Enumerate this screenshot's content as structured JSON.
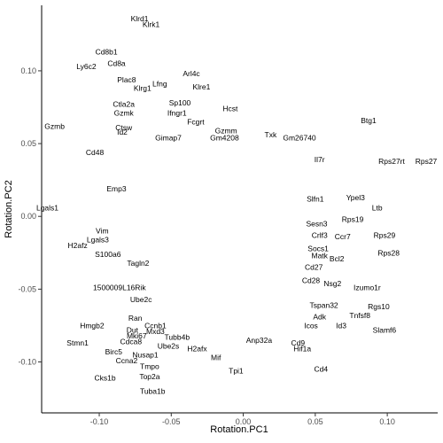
{
  "chart_data": {
    "type": "scatter",
    "xlabel": "Rotation.PC1",
    "ylabel": "Rotation.PC2",
    "xlim": [
      -0.14,
      0.135
    ],
    "ylim": [
      -0.135,
      0.145
    ],
    "xticks": [
      -0.1,
      -0.05,
      0.0,
      0.05,
      0.1
    ],
    "xtick_labels": [
      "-0.10",
      "-0.05",
      "0.00",
      "0.05",
      "0.10"
    ],
    "yticks": [
      -0.1,
      -0.05,
      0.0,
      0.05,
      0.1
    ],
    "ytick_labels": [
      "-0.10",
      "-0.05",
      "0.00",
      "0.05",
      "0.10"
    ],
    "grid": false,
    "points": [
      {
        "label": "Klrd1",
        "x": -0.072,
        "y": 0.136
      },
      {
        "label": "Klrk1",
        "x": -0.064,
        "y": 0.132
      },
      {
        "label": "Cd8b1",
        "x": -0.095,
        "y": 0.113
      },
      {
        "label": "Cd8a",
        "x": -0.088,
        "y": 0.105
      },
      {
        "label": "Ly6c2",
        "x": -0.109,
        "y": 0.103
      },
      {
        "label": "Arl4c",
        "x": -0.036,
        "y": 0.098
      },
      {
        "label": "Plac8",
        "x": -0.081,
        "y": 0.094
      },
      {
        "label": "Lfng",
        "x": -0.058,
        "y": 0.091
      },
      {
        "label": "Klrg1",
        "x": -0.07,
        "y": 0.088
      },
      {
        "label": "Klre1",
        "x": -0.029,
        "y": 0.089
      },
      {
        "label": "Sp100",
        "x": -0.044,
        "y": 0.078
      },
      {
        "label": "Ctla2a",
        "x": -0.083,
        "y": 0.077
      },
      {
        "label": "Hcst",
        "x": -0.009,
        "y": 0.074
      },
      {
        "label": "Gzmk",
        "x": -0.083,
        "y": 0.071
      },
      {
        "label": "Ifngr1",
        "x": -0.046,
        "y": 0.071
      },
      {
        "label": "Btg1",
        "x": 0.087,
        "y": 0.066
      },
      {
        "label": "Fcgrt",
        "x": -0.033,
        "y": 0.065
      },
      {
        "label": "Gzmb",
        "x": -0.131,
        "y": 0.062
      },
      {
        "label": "Ctsw",
        "x": -0.083,
        "y": 0.061
      },
      {
        "label": "Id2",
        "x": -0.084,
        "y": 0.058
      },
      {
        "label": "Gzmm",
        "x": -0.012,
        "y": 0.059
      },
      {
        "label": "Txk",
        "x": 0.019,
        "y": 0.056
      },
      {
        "label": "Gm4208",
        "x": -0.013,
        "y": 0.054
      },
      {
        "label": "Gm26740",
        "x": 0.039,
        "y": 0.054
      },
      {
        "label": "Gimap7",
        "x": -0.052,
        "y": 0.054
      },
      {
        "label": "Cd48",
        "x": -0.103,
        "y": 0.044
      },
      {
        "label": "Il7r",
        "x": 0.053,
        "y": 0.039
      },
      {
        "label": "Rps27rt",
        "x": 0.103,
        "y": 0.038
      },
      {
        "label": "Rps27",
        "x": 0.127,
        "y": 0.038
      },
      {
        "label": "Emp3",
        "x": -0.088,
        "y": 0.019
      },
      {
        "label": "Ypel3",
        "x": 0.078,
        "y": 0.013
      },
      {
        "label": "Slfn1",
        "x": 0.05,
        "y": 0.012
      },
      {
        "label": "Lgals1",
        "x": -0.136,
        "y": 0.006
      },
      {
        "label": "Ltb",
        "x": 0.093,
        "y": 0.006
      },
      {
        "label": "Rps19",
        "x": 0.076,
        "y": -0.002
      },
      {
        "label": "Sesn3",
        "x": 0.051,
        "y": -0.005
      },
      {
        "label": "Vim",
        "x": -0.098,
        "y": -0.01
      },
      {
        "label": "Crlf3",
        "x": 0.053,
        "y": -0.013
      },
      {
        "label": "Ccr7",
        "x": 0.069,
        "y": -0.014
      },
      {
        "label": "Rps29",
        "x": 0.098,
        "y": -0.013
      },
      {
        "label": "Lgals3",
        "x": -0.101,
        "y": -0.016
      },
      {
        "label": "H2afz",
        "x": -0.115,
        "y": -0.02
      },
      {
        "label": "Socs1",
        "x": 0.052,
        "y": -0.022
      },
      {
        "label": "S100a6",
        "x": -0.094,
        "y": -0.026
      },
      {
        "label": "Matk",
        "x": 0.053,
        "y": -0.027
      },
      {
        "label": "Rps28",
        "x": 0.101,
        "y": -0.025
      },
      {
        "label": "Bcl2",
        "x": 0.065,
        "y": -0.029
      },
      {
        "label": "Tagln2",
        "x": -0.073,
        "y": -0.032
      },
      {
        "label": "Cd27",
        "x": 0.049,
        "y": -0.035
      },
      {
        "label": "Cd28",
        "x": 0.047,
        "y": -0.044
      },
      {
        "label": "Nsg2",
        "x": 0.062,
        "y": -0.046
      },
      {
        "label": "Izumo1r",
        "x": 0.086,
        "y": -0.049
      },
      {
        "label": "1500009L16Rik",
        "x": -0.086,
        "y": -0.049
      },
      {
        "label": "Ube2c",
        "x": -0.071,
        "y": -0.057
      },
      {
        "label": "Tspan32",
        "x": 0.056,
        "y": -0.061
      },
      {
        "label": "Rgs10",
        "x": 0.094,
        "y": -0.062
      },
      {
        "label": "Adk",
        "x": 0.053,
        "y": -0.069
      },
      {
        "label": "Tnfsf8",
        "x": 0.081,
        "y": -0.068
      },
      {
        "label": "Ran",
        "x": -0.075,
        "y": -0.07
      },
      {
        "label": "Hmgb2",
        "x": -0.105,
        "y": -0.075
      },
      {
        "label": "Ccnb1",
        "x": -0.061,
        "y": -0.075
      },
      {
        "label": "Icos",
        "x": 0.047,
        "y": -0.075
      },
      {
        "label": "Id3",
        "x": 0.068,
        "y": -0.075
      },
      {
        "label": "Dut",
        "x": -0.077,
        "y": -0.078
      },
      {
        "label": "Mxd3",
        "x": -0.061,
        "y": -0.079
      },
      {
        "label": "Slamf6",
        "x": 0.098,
        "y": -0.078
      },
      {
        "label": "Mki67",
        "x": -0.074,
        "y": -0.082
      },
      {
        "label": "Tubb4b",
        "x": -0.046,
        "y": -0.083
      },
      {
        "label": "Cdca8",
        "x": -0.078,
        "y": -0.086
      },
      {
        "label": "Stmn1",
        "x": -0.115,
        "y": -0.087
      },
      {
        "label": "Anp32a",
        "x": 0.011,
        "y": -0.085
      },
      {
        "label": "Cd9",
        "x": 0.038,
        "y": -0.087
      },
      {
        "label": "Ube2s",
        "x": -0.052,
        "y": -0.089
      },
      {
        "label": "Hif1a",
        "x": 0.041,
        "y": -0.091
      },
      {
        "label": "H2afx",
        "x": -0.032,
        "y": -0.091
      },
      {
        "label": "Birc5",
        "x": -0.09,
        "y": -0.093
      },
      {
        "label": "Nusap1",
        "x": -0.068,
        "y": -0.095
      },
      {
        "label": "Mif",
        "x": -0.019,
        "y": -0.097
      },
      {
        "label": "Ccna2",
        "x": -0.081,
        "y": -0.099
      },
      {
        "label": "Tmpo",
        "x": -0.065,
        "y": -0.103
      },
      {
        "label": "Tpi1",
        "x": -0.005,
        "y": -0.106
      },
      {
        "label": "Cd4",
        "x": 0.054,
        "y": -0.105
      },
      {
        "label": "Cks1b",
        "x": -0.096,
        "y": -0.111
      },
      {
        "label": "Top2a",
        "x": -0.065,
        "y": -0.11
      },
      {
        "label": "Tuba1b",
        "x": -0.063,
        "y": -0.12
      }
    ]
  }
}
